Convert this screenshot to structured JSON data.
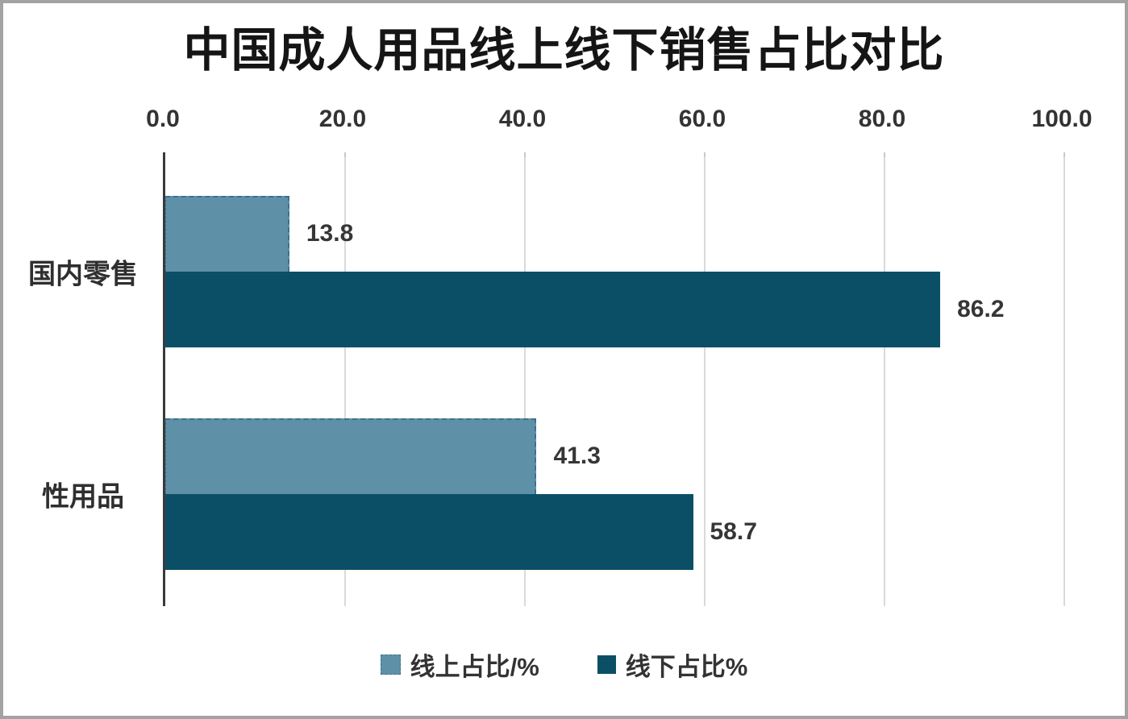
{
  "chart_data": {
    "type": "bar",
    "orientation": "horizontal",
    "title": "中国成人用品线上线下销售占比对比",
    "categories": [
      "国内零售",
      "性用品"
    ],
    "series": [
      {
        "name": "线上占比/%",
        "color": "#5E91A8",
        "values": [
          13.8,
          41.3
        ]
      },
      {
        "name": "线下占比%",
        "color": "#0B4F66",
        "values": [
          86.2,
          58.7
        ]
      }
    ],
    "data_labels": [
      "13.8",
      "86.2",
      "41.3",
      "58.7"
    ],
    "xlim": [
      0,
      100
    ],
    "xticks": [
      0,
      20,
      40,
      60,
      80,
      100
    ],
    "xtick_labels": [
      "0.0",
      "20.0",
      "40.0",
      "60.0",
      "80.0",
      "100.0"
    ],
    "grid": true,
    "legend_position": "bottom",
    "colors": {
      "online_series": "#5E91A8",
      "offline_series": "#0B4F66",
      "axis_line": "#3A3A3A",
      "gridline": "#DADADA",
      "text": "#333333",
      "frame_border": "#A3A3A3"
    }
  }
}
